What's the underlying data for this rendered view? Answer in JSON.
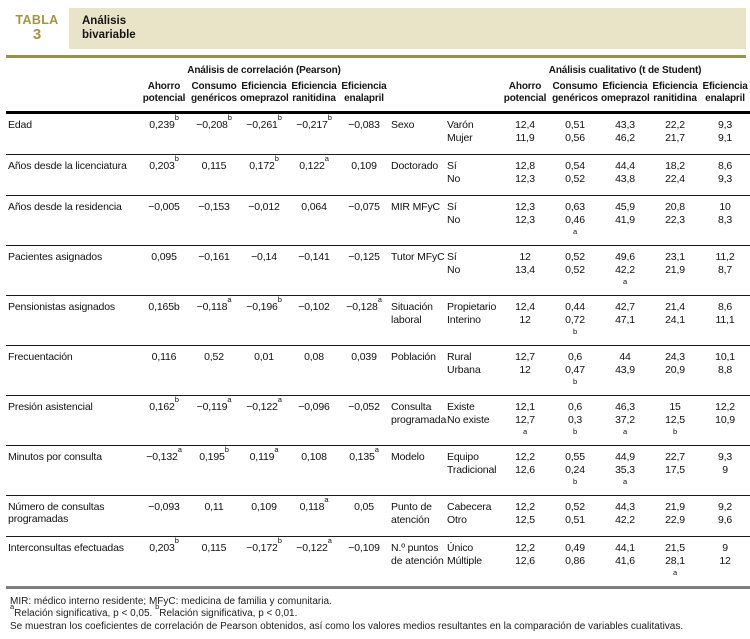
{
  "header": {
    "tag": "TABLA",
    "number": "3",
    "title": "Análisis bivariable"
  },
  "table": {
    "group_pearson": "Análisis de correlación (Pearson)",
    "group_student": "Análisis cualitativo (t de Student)",
    "col_headers": [
      "Ahorro potencial",
      "Consumo genéricos",
      "Eficiencia omeprazol",
      "Eficiencia ranitidina",
      "Eficiencia enalapril"
    ],
    "rows": [
      {
        "variable": "Edad",
        "pearson": [
          {
            "v": "0,239",
            "s": "b"
          },
          {
            "v": "−0,208",
            "s": "b"
          },
          {
            "v": "−0,261",
            "s": "b"
          },
          {
            "v": "−0,217",
            "s": "b"
          },
          {
            "v": "−0,083"
          }
        ],
        "qual": "Sexo",
        "categories": [
          "Varón",
          "Mujer"
        ],
        "student": [
          [
            "12,4",
            "0,51",
            "43,3",
            "22,2",
            "9,3"
          ],
          [
            "11,9",
            "0,56",
            "46,2",
            "21,7",
            "9,1"
          ]
        ],
        "markers": [
          null,
          null,
          null,
          null,
          null
        ]
      },
      {
        "variable": "Años desde la licenciatura",
        "pearson": [
          {
            "v": "0,203",
            "s": "b"
          },
          {
            "v": "0,115"
          },
          {
            "v": "0,172",
            "s": "b"
          },
          {
            "v": "0,122",
            "s": "a"
          },
          {
            "v": "0,109"
          }
        ],
        "qual": "Doctorado",
        "categories": [
          "Sí",
          "No"
        ],
        "student": [
          [
            "12,8",
            "0,54",
            "44,4",
            "18,2",
            "8,6"
          ],
          [
            "12,3",
            "0,52",
            "43,8",
            "22,4",
            "9,3"
          ]
        ],
        "markers": [
          null,
          null,
          null,
          null,
          null
        ]
      },
      {
        "variable": "Años desde la residencia",
        "pearson": [
          {
            "v": "−0,005"
          },
          {
            "v": "−0,153"
          },
          {
            "v": "−0,012"
          },
          {
            "v": "0,064"
          },
          {
            "v": "−0,075"
          }
        ],
        "qual": "MIR MFyC",
        "categories": [
          "Sí",
          "No"
        ],
        "student": [
          [
            "12,3",
            "0,63",
            "45,9",
            "20,8",
            "10"
          ],
          [
            "12,3",
            "0,46",
            "41,9",
            "22,3",
            "8,3"
          ]
        ],
        "markers": [
          null,
          "a",
          null,
          null,
          null
        ]
      },
      {
        "variable": "Pacientes asignados",
        "pearson": [
          {
            "v": "0,095"
          },
          {
            "v": "−0,161"
          },
          {
            "v": "−0,14"
          },
          {
            "v": "−0,141"
          },
          {
            "v": "−0,125"
          }
        ],
        "qual": "Tutor MFyC",
        "categories": [
          "Sí",
          "No"
        ],
        "student": [
          [
            "12",
            "0,52",
            "49,6",
            "23,1",
            "11,2"
          ],
          [
            "13,4",
            "0,52",
            "42,2",
            "21,9",
            "8,7"
          ]
        ],
        "markers": [
          null,
          null,
          "a",
          null,
          null
        ]
      },
      {
        "variable": "Pensionistas asignados",
        "pearson": [
          {
            "v": "0,165b"
          },
          {
            "v": "−0,118",
            "s": "a"
          },
          {
            "v": "−0,196",
            "s": "b"
          },
          {
            "v": "−0,102"
          },
          {
            "v": "−0,128",
            "s": "a"
          }
        ],
        "qual": "Situación laboral",
        "categories": [
          "Propietario",
          "Interino"
        ],
        "student": [
          [
            "12,4",
            "0,44",
            "42,7",
            "21,4",
            "8,6"
          ],
          [
            "12",
            "0,72",
            "47,1",
            "24,1",
            "11,1"
          ]
        ],
        "markers": [
          null,
          "b",
          null,
          null,
          null
        ]
      },
      {
        "variable": "Frecuentación",
        "pearson": [
          {
            "v": "0,116"
          },
          {
            "v": "0,52"
          },
          {
            "v": "0,01"
          },
          {
            "v": "0,08"
          },
          {
            "v": "0,039"
          }
        ],
        "qual": "Población",
        "categories": [
          "Rural",
          "Urbana"
        ],
        "student": [
          [
            "12,7",
            "0,6",
            "44",
            "24,3",
            "10,1"
          ],
          [
            "12",
            "0,47",
            "43,9",
            "20,9",
            "8,8"
          ]
        ],
        "markers": [
          null,
          "b",
          null,
          null,
          null
        ]
      },
      {
        "variable": "Presión asistencial",
        "pearson": [
          {
            "v": "0,162",
            "s": "b"
          },
          {
            "v": "−0,119",
            "s": "a"
          },
          {
            "v": "−0,122",
            "s": "a"
          },
          {
            "v": "−0,096"
          },
          {
            "v": "−0,052"
          }
        ],
        "qual": "Consulta programada",
        "categories": [
          "Existe",
          "No existe"
        ],
        "student": [
          [
            "12,1",
            "0,6",
            "46,3",
            "15",
            "12,2"
          ],
          [
            "12,7",
            "0,3",
            "37,2",
            "12,5",
            "10,9"
          ]
        ],
        "markers": [
          "a",
          "b",
          "a",
          "b",
          null
        ]
      },
      {
        "variable": "Minutos por consulta",
        "pearson": [
          {
            "v": "−0,132",
            "s": "a"
          },
          {
            "v": "0,195",
            "s": "b"
          },
          {
            "v": "0,119",
            "s": "a"
          },
          {
            "v": "0,108"
          },
          {
            "v": "0,135",
            "s": "a"
          }
        ],
        "qual": "Modelo",
        "categories": [
          "Equipo",
          "Tradicional"
        ],
        "student": [
          [
            "12,2",
            "0,55",
            "44,9",
            "22,7",
            "9,3"
          ],
          [
            "12,6",
            "0,24",
            "35,3",
            "17,5",
            "9"
          ]
        ],
        "markers": [
          null,
          "b",
          "a",
          null,
          null
        ]
      },
      {
        "variable": "Número de consultas programadas",
        "pearson": [
          {
            "v": "−0,093"
          },
          {
            "v": "0,11"
          },
          {
            "v": "0,109"
          },
          {
            "v": "0,118",
            "s": "a"
          },
          {
            "v": "0,05"
          }
        ],
        "qual": "Punto de atención",
        "categories": [
          "Cabecera",
          "Otro"
        ],
        "student": [
          [
            "12,2",
            "0,52",
            "44,3",
            "21,9",
            "9,2"
          ],
          [
            "12,5",
            "0,51",
            "42,2",
            "22,9",
            "9,6"
          ]
        ],
        "markers": [
          null,
          null,
          null,
          null,
          null
        ]
      },
      {
        "variable": "Interconsultas efectuadas",
        "pearson": [
          {
            "v": "0,203",
            "s": "b"
          },
          {
            "v": "0,115"
          },
          {
            "v": "−0,172",
            "s": "b"
          },
          {
            "v": "−0,122",
            "s": "a"
          },
          {
            "v": "−0,109"
          }
        ],
        "qual": "N.º puntos de atención",
        "categories": [
          "Único",
          "Múltiple"
        ],
        "student": [
          [
            "12,2",
            "0,49",
            "44,1",
            "21,5",
            "9"
          ],
          [
            "12,6",
            "0,86",
            "41,6",
            "28,1",
            "12"
          ]
        ],
        "markers": [
          null,
          null,
          null,
          "a",
          null
        ]
      }
    ]
  },
  "footer": {
    "abbrev": "MIR: médico interno residente; MFyC: medicina de familia y comunitaria.",
    "note_a_sup": "a",
    "note_a": "Relación significativa, p < 0,05. ",
    "note_b_sup": "b",
    "note_b": "Relación significativa, p < 0,01.",
    "description": "Se muestran los coeficientes de correlación de Pearson obtenidos, así como los valores medios resultantes en la comparación de variables cualitativas."
  },
  "colors": {
    "accent_gold": "#a59440",
    "title_box_beige": "#e9e4c8",
    "rule_olive": "#9c9148",
    "end_bar_gray": "#7e7e7e"
  }
}
